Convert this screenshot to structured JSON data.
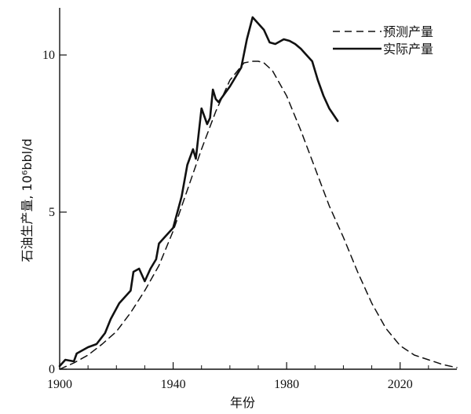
{
  "chart_data": {
    "type": "line",
    "xlabel": "年份",
    "ylabel": "石油生产量, 10⁶bbl/d",
    "xlim": [
      1900,
      2040
    ],
    "ylim": [
      0,
      11.5
    ],
    "x_ticks": [
      1900,
      1940,
      1980,
      2020
    ],
    "x_minor_ticks": [
      1910,
      1920,
      1930,
      1950,
      1960,
      1970,
      1990,
      2000,
      2010,
      2030
    ],
    "y_ticks": [
      0,
      5,
      10
    ],
    "grid": false,
    "legend_position": "top-right",
    "series": [
      {
        "name": "预测产量",
        "style": "dashed",
        "color": "#111111",
        "x": [
          1900,
          1905,
          1910,
          1915,
          1920,
          1925,
          1930,
          1935,
          1940,
          1945,
          1950,
          1955,
          1960,
          1965,
          1968,
          1970,
          1972,
          1975,
          1980,
          1985,
          1990,
          1995,
          2000,
          2005,
          2010,
          2015,
          2020,
          2025,
          2030,
          2035,
          2040
        ],
        "values": [
          0.0,
          0.2,
          0.45,
          0.8,
          1.2,
          1.8,
          2.5,
          3.3,
          4.4,
          5.7,
          7.0,
          8.2,
          9.2,
          9.75,
          9.8,
          9.8,
          9.75,
          9.5,
          8.7,
          7.6,
          6.4,
          5.2,
          4.2,
          3.1,
          2.1,
          1.3,
          0.75,
          0.45,
          0.3,
          0.15,
          0.05
        ]
      },
      {
        "name": "实际产量",
        "style": "solid",
        "color": "#111111",
        "x": [
          1900,
          1902,
          1905,
          1906,
          1910,
          1913,
          1916,
          1918,
          1921,
          1925,
          1926,
          1928,
          1930,
          1932,
          1934,
          1935,
          1937,
          1940,
          1943,
          1945,
          1947,
          1948,
          1950,
          1952,
          1953,
          1954,
          1955,
          1956,
          1960,
          1964,
          1966,
          1968,
          1970,
          1972,
          1974,
          1976,
          1979,
          1981,
          1983,
          1985,
          1987,
          1989,
          1991,
          1993,
          1995,
          1998
        ],
        "values": [
          0.1,
          0.3,
          0.25,
          0.5,
          0.7,
          0.8,
          1.15,
          1.6,
          2.1,
          2.5,
          3.1,
          3.2,
          2.8,
          3.2,
          3.5,
          4.0,
          4.2,
          4.5,
          5.5,
          6.5,
          7.0,
          6.7,
          8.3,
          7.8,
          8.0,
          8.9,
          8.6,
          8.5,
          9.0,
          9.6,
          10.5,
          11.2,
          11.0,
          10.8,
          10.4,
          10.35,
          10.5,
          10.45,
          10.35,
          10.2,
          10.0,
          9.8,
          9.2,
          8.7,
          8.3,
          7.9
        ]
      }
    ]
  }
}
